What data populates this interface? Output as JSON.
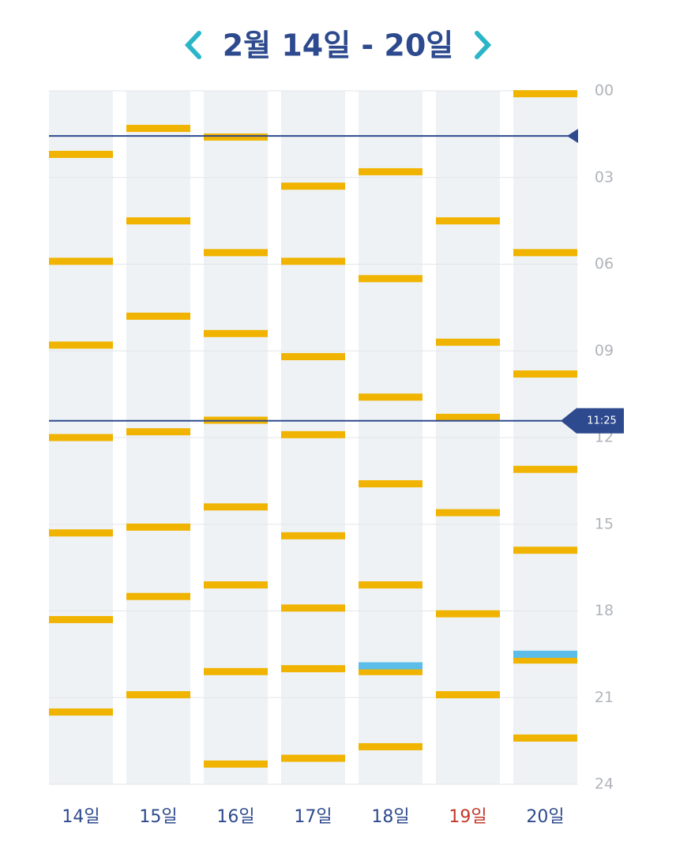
{
  "chart_data": {
    "type": "schedule",
    "title": "2월 14일 - 20일",
    "categories": [
      "14일",
      "15일",
      "16일",
      "17일",
      "18일",
      "19일",
      "20일"
    ],
    "category_colors": [
      "#2e4a8e",
      "#2e4a8e",
      "#2e4a8e",
      "#2e4a8e",
      "#2e4a8e",
      "#c0392b",
      "#2e4a8e"
    ],
    "ylim": [
      0,
      24
    ],
    "yticks": [
      {
        "value": 0,
        "label": "00"
      },
      {
        "value": 3,
        "label": "03"
      },
      {
        "value": 6,
        "label": "06"
      },
      {
        "value": 9,
        "label": "09"
      },
      12,
      15,
      18,
      21,
      24
    ],
    "grid": true,
    "series": [
      {
        "color": "#f0b400",
        "values": [
          [
            2.2,
            5.9,
            8.8,
            12.0,
            15.3,
            18.3,
            21.5
          ],
          [
            1.3,
            4.5,
            7.8,
            11.8,
            15.1,
            17.5,
            20.9
          ],
          [
            1.6,
            5.6,
            8.4,
            11.4,
            14.4,
            17.1,
            20.1,
            23.3
          ],
          [
            3.3,
            5.9,
            9.2,
            11.9,
            15.4,
            17.9,
            20.0,
            23.1
          ],
          [
            2.8,
            6.5,
            10.6,
            13.6,
            17.1,
            20.1,
            22.7
          ],
          [
            4.5,
            8.7,
            11.3,
            14.6,
            18.1,
            20.9
          ],
          [
            0.1,
            5.6,
            9.8,
            13.1,
            15.9,
            19.7,
            22.4
          ]
        ]
      },
      {
        "color": "#5bbde8",
        "values": [
          [],
          [],
          [],
          [],
          [
            19.9
          ],
          [],
          [
            19.5
          ]
        ]
      }
    ],
    "markers": [
      {
        "value": 1.56
      },
      {
        "value": 11.42,
        "label": "11:25"
      }
    ],
    "marker_color": "#2e4a8e"
  }
}
